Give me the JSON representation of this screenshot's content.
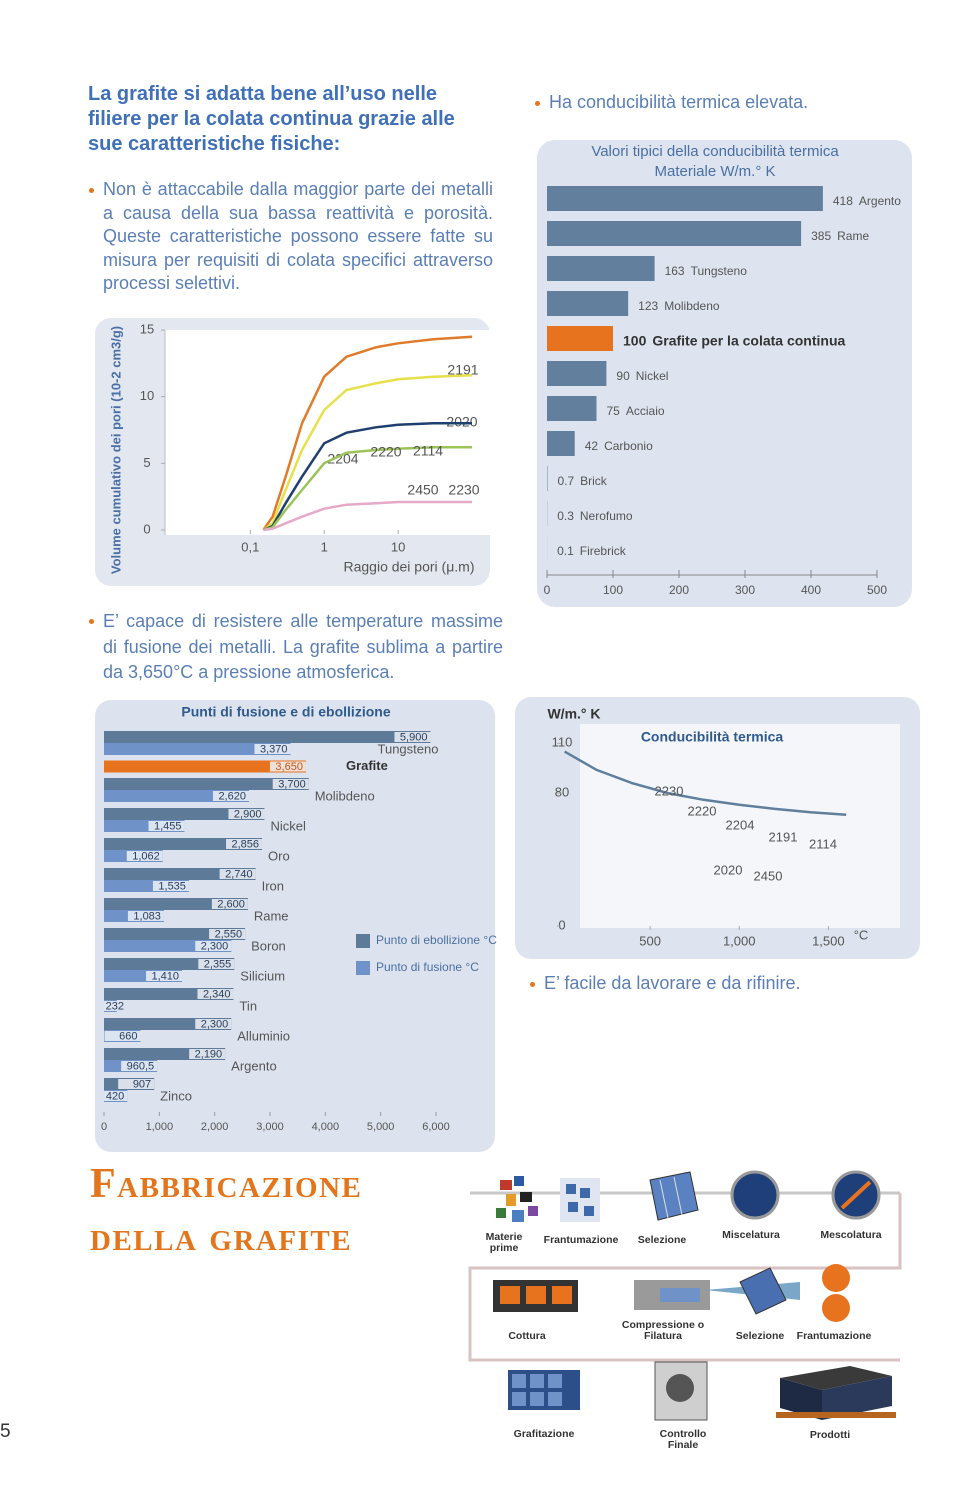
{
  "heading": "La grafite si adatta bene all’uso nelle filiere per la colata continua grazie alle sue caratteristiche fisiche:",
  "bullets": [
    "Non è attaccabile dalla maggior parte dei metalli a causa della sua bassa reattività e porosità. Queste caratteristiche possono essere fatte su misura per requisiti di colata specifici attraverso processi selettivi.",
    "Ha conducibilità termica elevata.",
    "E’ capace di resistere alle temperature massime di fusione dei metalli. La grafite sublima a partire da 3,650°C a pressione atmosferica.",
    "E’ facile da lavorare e da rifinire."
  ],
  "section_title": [
    "Fabbricazione",
    "della grafite"
  ],
  "process": {
    "steps": [
      [
        "Materie",
        "prime"
      ],
      [
        "Frantumazione"
      ],
      [
        "Selezione"
      ],
      [
        "Miscelatura"
      ],
      [
        "Mescolatura"
      ],
      [
        "Cottura"
      ],
      [
        "Compressione o",
        "Filatura"
      ],
      [
        "Selezione"
      ],
      [
        "Frantumazione"
      ],
      [
        "Grafitazione"
      ],
      [
        "Controllo",
        "Finale"
      ],
      [
        "Prodotti"
      ]
    ]
  },
  "page_number": "5",
  "chart_data": [
    {
      "type": "line",
      "ylabel": "Volume cumulativo dei pori (10-2 cm3/g)",
      "xlabel": "Raggio dei pori (μ.m)",
      "x": [
        0.15,
        0.2,
        0.3,
        0.5,
        1,
        2,
        5,
        10,
        30,
        100
      ],
      "xscale": "log",
      "xlim": [
        0.007,
        175
      ],
      "xticks": [
        {
          "value": 0.1,
          "label": "0,1"
        },
        1,
        10
      ],
      "ylim": [
        0,
        15
      ],
      "yticks": [
        0,
        5,
        10,
        15
      ],
      "series": [
        {
          "name": "2191",
          "color": "#e07b2a",
          "values": [
            0,
            1,
            4,
            8,
            11.5,
            13,
            13.7,
            14,
            14.3,
            14.5
          ]
        },
        {
          "name": "2020",
          "color": "#e8e04a",
          "values": [
            0,
            0.5,
            3,
            6,
            9,
            10.5,
            11,
            11.3,
            11.5,
            11.6
          ]
        },
        {
          "name": "2204",
          "color": "#1f3f6e",
          "values": [
            0,
            0.3,
            2,
            4,
            6.5,
            7.3,
            7.7,
            7.9,
            8,
            8
          ]
        },
        {
          "name": "2450",
          "color": "#9cc25a",
          "values": [
            0,
            0.2,
            1.5,
            3,
            5,
            5.8,
            6,
            6.1,
            6.2,
            6.2
          ]
        },
        {
          "name": "2230",
          "color": "#e6a9c8",
          "values": [
            0,
            0.1,
            0.5,
            1,
            1.6,
            1.9,
            2,
            2.1,
            2.1,
            2.1
          ]
        }
      ],
      "annotations": [
        "2220",
        "2114"
      ]
    },
    {
      "type": "hbar",
      "title": "Valori tipici della conducibilità termica",
      "subtitle": "Materiale W/m.° K",
      "categories": [
        "Argento",
        "Rame",
        "Tungsteno",
        "Molibdeno",
        "Grafite per la colata continua",
        "Nickel",
        "Acciaio",
        "Carbonio",
        "Brick",
        "Nerofumo",
        "Firebrick"
      ],
      "values": [
        418,
        385,
        163,
        123,
        100,
        90,
        75,
        42,
        0.7,
        0.3,
        0.1
      ],
      "color": "#62809d",
      "colors": [
        "#62809d",
        "#62809d",
        "#62809d",
        "#62809d",
        "#e8731e",
        "#62809d",
        "#62809d",
        "#62809d",
        "#62809d",
        "#62809d",
        "#62809d"
      ],
      "xlim": [
        0,
        500
      ],
      "xticks": [
        0,
        100,
        200,
        300,
        400,
        500
      ]
    },
    {
      "type": "grouped-hbar",
      "title": "Punti di fusione e di ebollizione",
      "categories": [
        "Tungsteno",
        "Grafite",
        "Molibdeno",
        "Nickel",
        "Oro",
        "Iron",
        "Rame",
        "Boron",
        "Silicium",
        "Tin",
        "Alluminio",
        "Argento",
        "Zinco"
      ],
      "series": [
        {
          "name": "Punto di ebollizione °C",
          "color": "#5d7b99",
          "colors": [
            "#5d7b99",
            "#e8731e",
            "#5d7b99",
            "#5d7b99",
            "#5d7b99",
            "#5d7b99",
            "#5d7b99",
            "#5d7b99",
            "#5d7b99",
            "#5d7b99",
            "#5d7b99",
            "#5d7b99",
            "#5d7b99"
          ],
          "values": [
            5900,
            3650,
            3700,
            2900,
            2856,
            2740,
            2600,
            2550,
            2355,
            2340,
            2300,
            2190,
            907
          ],
          "value_labels": [
            "5,900",
            "3,650",
            "3,700",
            "2,900",
            "2,856",
            "2,740",
            "2,600",
            "2,550",
            "2,355",
            "2,340",
            "2,300",
            "2,190",
            "907"
          ]
        },
        {
          "name": "Punto di fusione °C",
          "color": "#6f93c8",
          "values": [
            3370,
            null,
            2620,
            1455,
            1062,
            1535,
            1083,
            2300,
            1410,
            232,
            660,
            960.5,
            420
          ],
          "value_labels": [
            "3,370",
            null,
            "2,620",
            "1,455",
            "1,062",
            "1,535",
            "1,083",
            "2,300",
            "1,410",
            "232",
            "660",
            "960,5",
            "420"
          ]
        }
      ],
      "xlim": [
        0,
        6000
      ],
      "xticks": [
        0,
        {
          "value": 1000,
          "label": "1,000"
        },
        {
          "value": 2000,
          "label": "2,000"
        },
        {
          "value": 3000,
          "label": "3,000"
        },
        {
          "value": 4000,
          "label": "4,000"
        },
        {
          "value": 5000,
          "label": "5,000"
        },
        {
          "value": 6000,
          "label": "6,000"
        }
      ]
    },
    {
      "type": "line",
      "title": "Conducibilità termica",
      "ylabel": "W/m.° K",
      "xunit": "°C",
      "x": [
        20,
        200,
        400,
        600,
        800,
        1000,
        1200,
        1400,
        1600
      ],
      "xlim": [
        0,
        1700
      ],
      "xticks": [
        500,
        {
          "value": 1000,
          "label": "1,000"
        },
        {
          "value": 1500,
          "label": "1,500"
        }
      ],
      "ylim": [
        0,
        115
      ],
      "yticks": [
        0,
        80,
        110
      ],
      "series": [
        {
          "color": "#5f7f9c",
          "values": [
            105,
            94,
            86,
            80,
            76,
            73,
            70.5,
            68.5,
            67
          ]
        }
      ],
      "annotations": [
        "2230",
        "2220",
        "2204",
        "2191",
        "2114",
        "2020",
        "2450"
      ]
    }
  ]
}
